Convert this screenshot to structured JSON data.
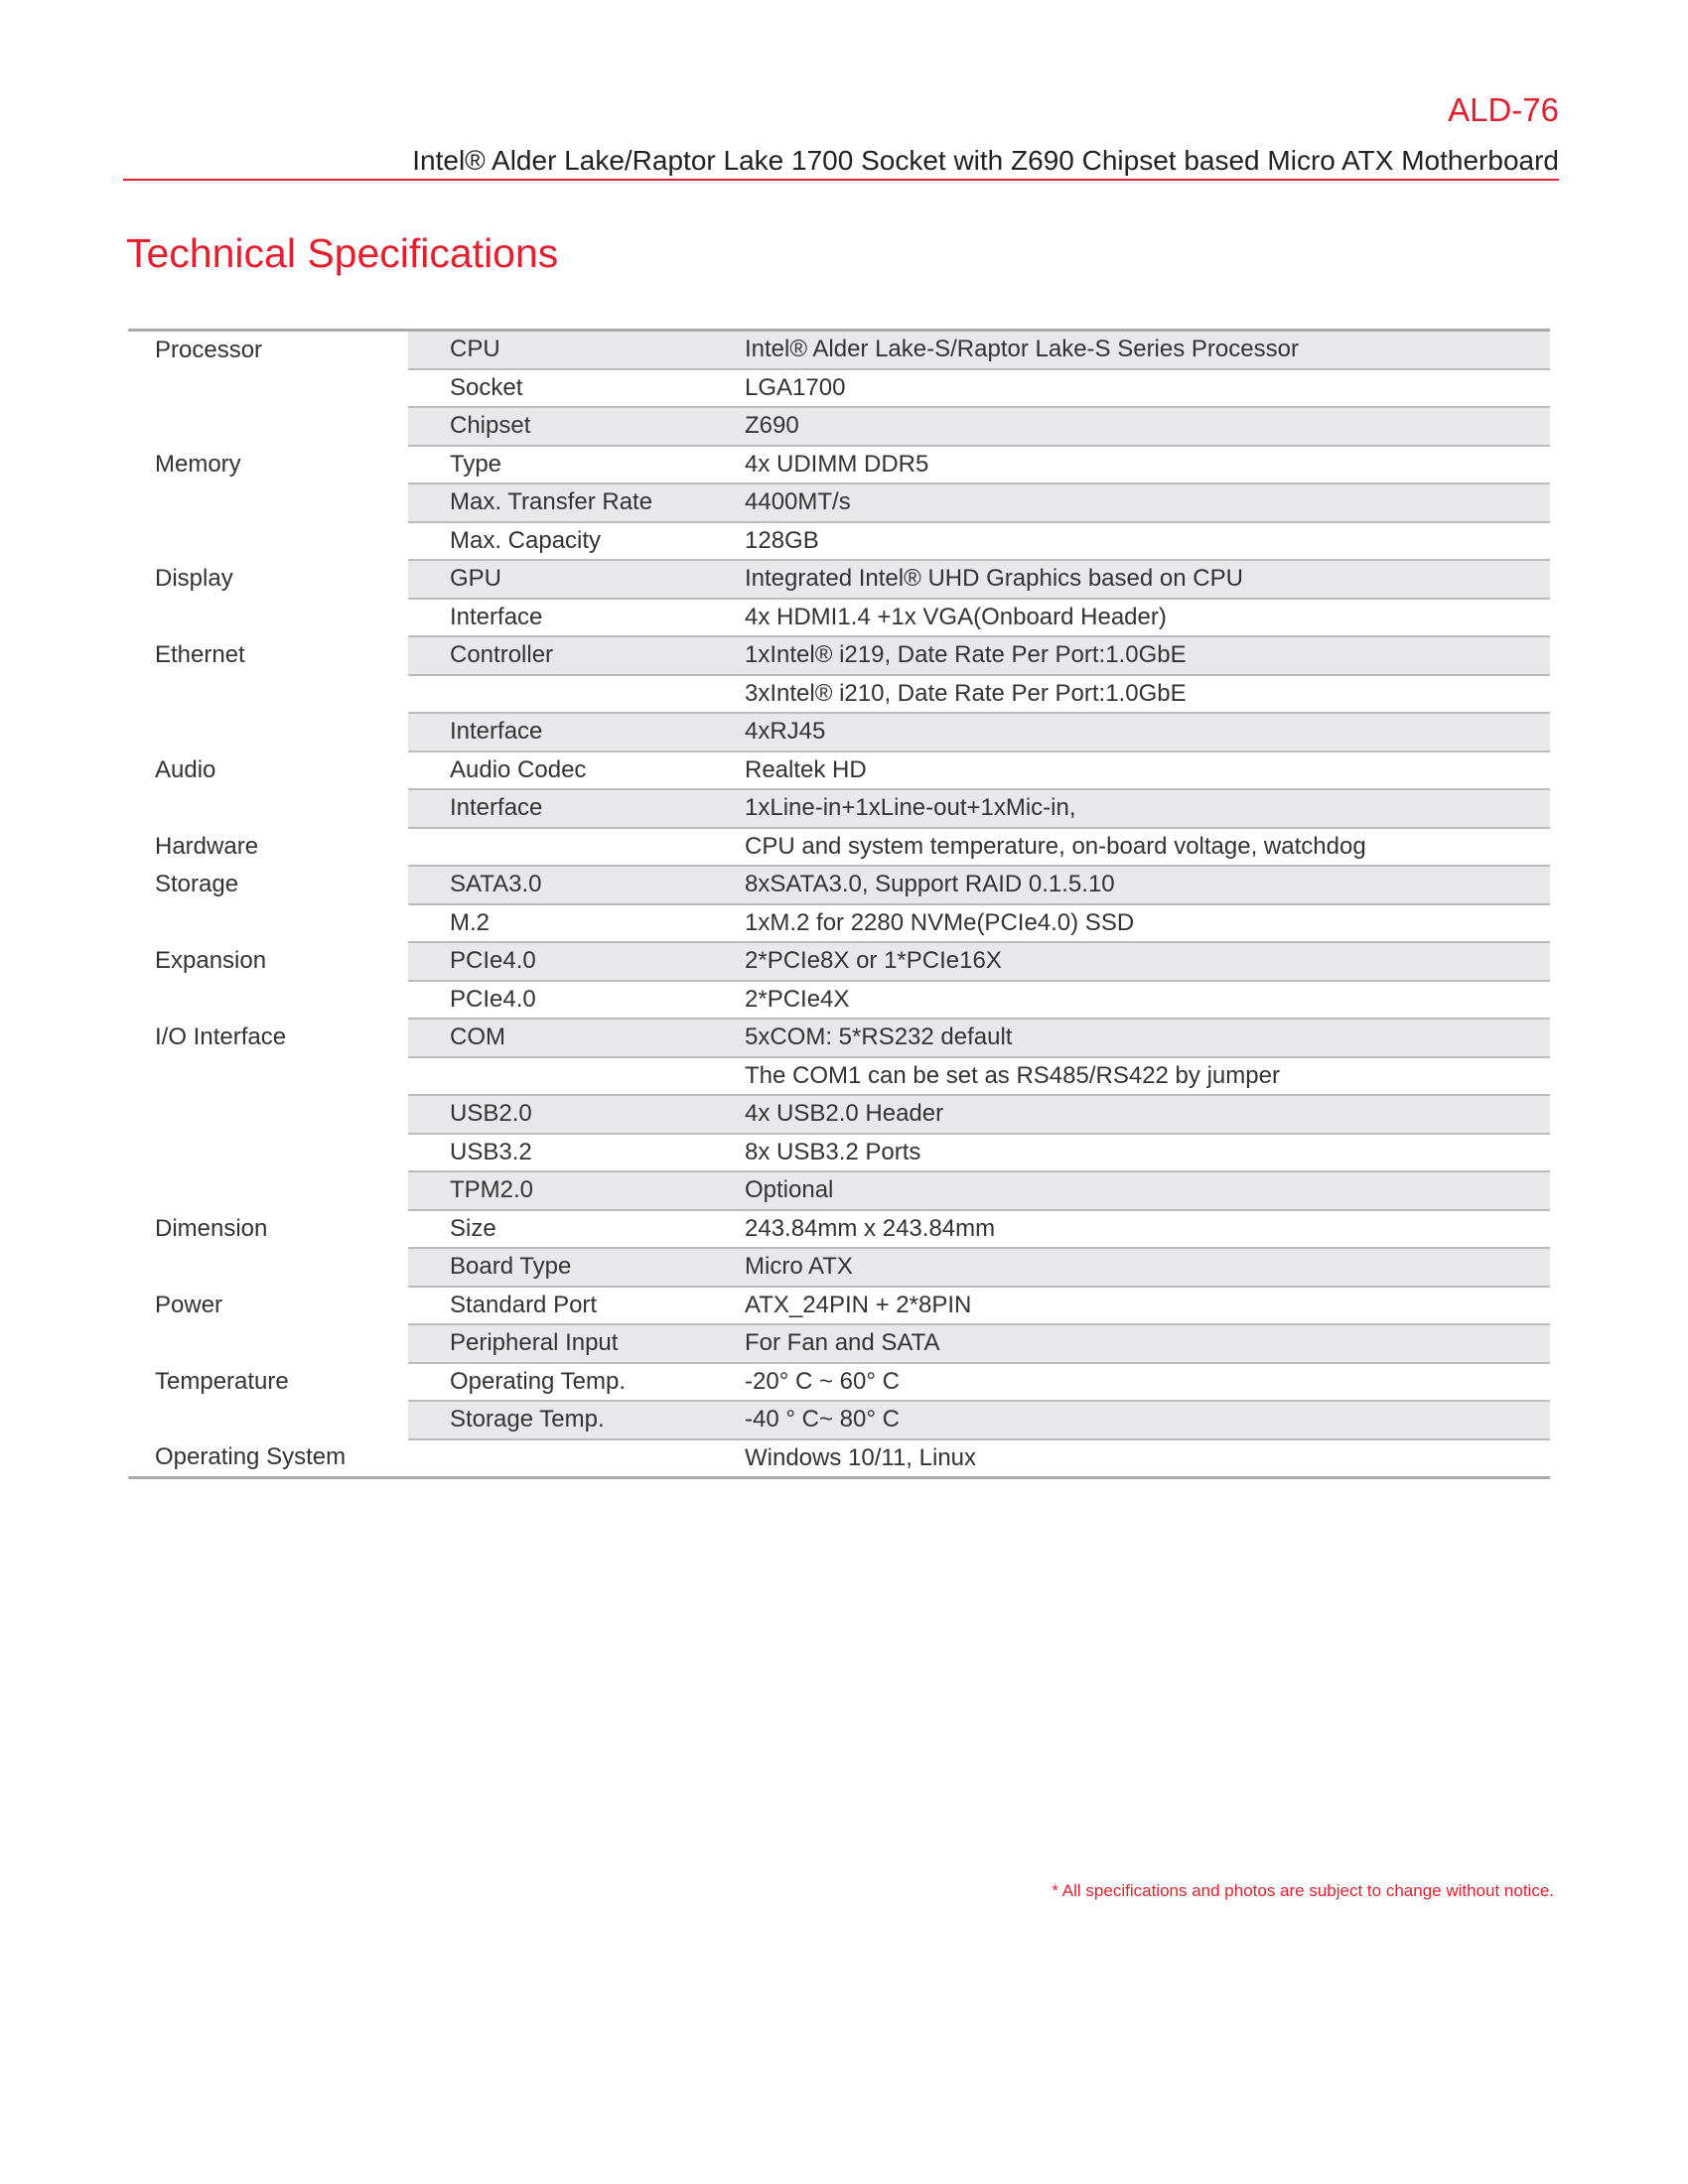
{
  "header": {
    "model": "ALD-76",
    "subtitle": "Intel® Alder Lake/Raptor Lake 1700 Socket with Z690 Chipset based Micro ATX Motherboard",
    "accent_color": "#e4202f"
  },
  "title": "Technical Specifications",
  "specs": [
    {
      "category": "Processor",
      "item": "CPU",
      "value": "Intel® Alder Lake-S/Raptor Lake-S Series Processor"
    },
    {
      "category": "",
      "item": "Socket",
      "value": "LGA1700"
    },
    {
      "category": "",
      "item": "Chipset",
      "value": "Z690"
    },
    {
      "category": "Memory",
      "item": "Type",
      "value": "4x UDIMM DDR5"
    },
    {
      "category": "",
      "item": "Max. Transfer Rate",
      "value": "4400MT/s"
    },
    {
      "category": "",
      "item": "Max. Capacity",
      "value": "128GB"
    },
    {
      "category": "Display",
      "item": "GPU",
      "value": "Integrated Intel® UHD Graphics based on CPU"
    },
    {
      "category": "",
      "item": "Interface",
      "value": "4x HDMI1.4 +1x VGA(Onboard Header)"
    },
    {
      "category": "Ethernet",
      "item": "Controller",
      "value": "1xIntel® i219, Date Rate Per Port:1.0GbE"
    },
    {
      "category": "",
      "item": "",
      "value": "3xIntel® i210, Date Rate Per Port:1.0GbE"
    },
    {
      "category": "",
      "item": "Interface",
      "value": "4xRJ45"
    },
    {
      "category": "Audio",
      "item": "Audio Codec",
      "value": "Realtek HD"
    },
    {
      "category": "",
      "item": "Interface",
      "value": "1xLine-in+1xLine-out+1xMic-in,"
    },
    {
      "category": "Hardware",
      "item": "",
      "value": "CPU and system temperature, on-board voltage, watchdog"
    },
    {
      "category": "Storage",
      "item": "SATA3.0",
      "value": "8xSATA3.0, Support RAID 0.1.5.10"
    },
    {
      "category": "",
      "item": "M.2",
      "value": "1xM.2 for 2280 NVMe(PCIe4.0) SSD"
    },
    {
      "category": "Expansion",
      "item": "PCIe4.0",
      "value": "2*PCIe8X or 1*PCIe16X"
    },
    {
      "category": "",
      "item": "PCIe4.0",
      "value": "2*PCIe4X"
    },
    {
      "category": "I/O Interface",
      "item": "COM",
      "value": "5xCOM: 5*RS232 default"
    },
    {
      "category": "",
      "item": "",
      "value": "The COM1 can be set as RS485/RS422 by jumper"
    },
    {
      "category": "",
      "item": "USB2.0",
      "value": "4x USB2.0 Header"
    },
    {
      "category": "",
      "item": "USB3.2",
      "value": "8x USB3.2 Ports"
    },
    {
      "category": "",
      "item": "TPM2.0",
      "value": "Optional"
    },
    {
      "category": "Dimension",
      "item": "Size",
      "value": "243.84mm x 243.84mm"
    },
    {
      "category": "",
      "item": "Board Type",
      "value": "Micro ATX"
    },
    {
      "category": "Power",
      "item": "Standard Port",
      "value": "ATX_24PIN + 2*8PIN"
    },
    {
      "category": "",
      "item": "Peripheral Input",
      "value": "For Fan and SATA"
    },
    {
      "category": "Temperature",
      "item": "Operating Temp.",
      "value": "-20° C ~ 60° C"
    },
    {
      "category": "",
      "item": "Storage Temp.",
      "value": "-40 ° C~ 80° C"
    },
    {
      "category": "Operating System",
      "item": "",
      "value": "Windows 10/11, Linux"
    }
  ],
  "footnote": "* All specifications and photos are subject to change without notice."
}
